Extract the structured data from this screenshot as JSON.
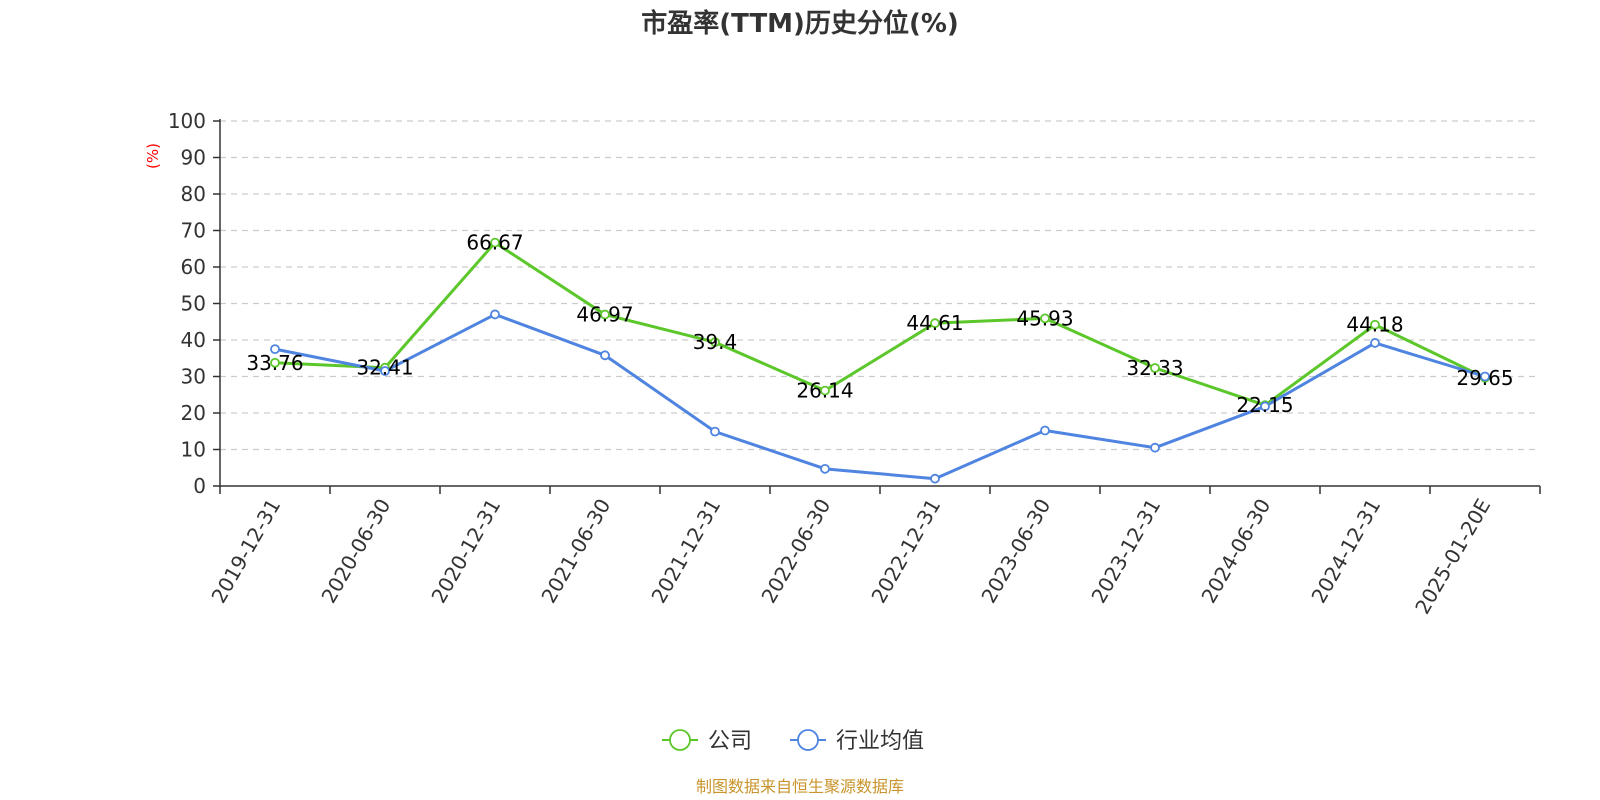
{
  "chart_data": {
    "type": "line",
    "title": "市盈率(TTM)历史分位(%)",
    "ylabel": "(%)",
    "ylim": [
      0,
      100
    ],
    "yticks": [
      0,
      10,
      20,
      30,
      40,
      50,
      60,
      70,
      80,
      90,
      100
    ],
    "grid": "horizontal-dashed",
    "legend_position": "bottom-center",
    "categories": [
      "2019-12-31",
      "2020-06-30",
      "2020-12-31",
      "2021-06-30",
      "2021-12-31",
      "2022-06-30",
      "2022-12-31",
      "2023-06-30",
      "2023-12-31",
      "2024-06-30",
      "2024-12-31",
      "2025-01-20E"
    ],
    "series": [
      {
        "name": "公司",
        "color": "#5cc72a",
        "values": [
          33.76,
          32.41,
          66.67,
          46.97,
          39.4,
          26.14,
          44.61,
          45.93,
          32.33,
          22.15,
          44.18,
          29.65
        ],
        "labels": [
          "33.76",
          "32.41",
          "66.67",
          "46.97",
          "39.4",
          "26.14",
          "44.61",
          "45.93",
          "32.33",
          "22.15",
          "44.18",
          "29.65"
        ]
      },
      {
        "name": "行业均值",
        "color": "#4f84e0",
        "values": [
          37.5,
          31.5,
          47.0,
          35.8,
          14.9,
          4.7,
          2.0,
          15.2,
          10.5,
          21.8,
          39.2,
          30.0
        ]
      }
    ],
    "source": "制图数据来自恒生聚源数据库",
    "colors": {
      "ylabel": "#ff0000",
      "source": "#c8942b",
      "grid": "#cccccc",
      "axis": "#333333"
    }
  }
}
